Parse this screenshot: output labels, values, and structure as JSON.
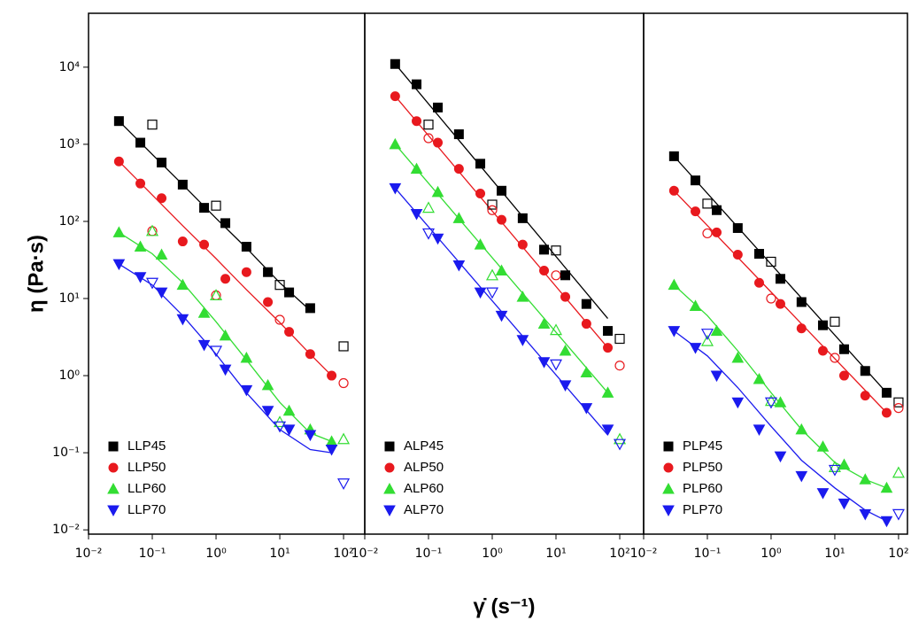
{
  "chart_data": [
    {
      "type": "scatter",
      "log_x": true,
      "log_y": true,
      "ylabel": "η (Pa·s)",
      "xlim": [
        0.01,
        215
      ],
      "ylim": [
        0.0088,
        50000
      ],
      "xticks": [
        {
          "value": 0.01,
          "label": "10⁻²"
        },
        {
          "value": 0.1,
          "label": "10⁻¹"
        },
        {
          "value": 1,
          "label": "10⁰"
        },
        {
          "value": 10,
          "label": "10¹"
        },
        {
          "value": 100,
          "label": "10²"
        }
      ],
      "yticks": [
        {
          "value": 0.01,
          "label": "10⁻²"
        },
        {
          "value": 0.1,
          "label": "10⁻¹"
        },
        {
          "value": 1,
          "label": "10⁰"
        },
        {
          "value": 10,
          "label": "10¹"
        },
        {
          "value": 100,
          "label": "10²"
        },
        {
          "value": 1000,
          "label": "10³"
        },
        {
          "value": 10000,
          "label": "10⁴"
        }
      ],
      "series": [
        {
          "name": "LLP45",
          "color": "#000000",
          "marker": "square",
          "x": [
            0.03,
            0.065,
            0.14,
            0.3,
            0.65,
            1.4,
            3,
            6.5,
            14,
            30
          ],
          "values": [
            2000,
            1050,
            580,
            300,
            150,
            95,
            47,
            22,
            12,
            7.5
          ]
        },
        {
          "name": "LLP50",
          "color": "#e8191e",
          "marker": "circle",
          "x": [
            0.03,
            0.065,
            0.14,
            0.3,
            0.65,
            1.4,
            3,
            6.5,
            14,
            30,
            65
          ],
          "values": [
            600,
            310,
            200,
            55,
            50,
            18,
            22,
            9,
            3.7,
            1.9,
            1.0
          ]
        },
        {
          "name": "LLP60",
          "color": "#33dd33",
          "marker": "triangle-up",
          "x": [
            0.03,
            0.065,
            0.14,
            0.3,
            0.65,
            1.4,
            3,
            6.5,
            14,
            30,
            65
          ],
          "values": [
            72,
            47,
            37,
            15,
            6.5,
            3.3,
            1.7,
            0.75,
            0.35,
            0.2,
            0.14
          ]
        },
        {
          "name": "LLP70",
          "color": "#1a1aee",
          "marker": "triangle-down",
          "x": [
            0.03,
            0.065,
            0.14,
            0.3,
            0.65,
            1.4,
            3,
            6.5,
            14,
            30,
            65
          ],
          "values": [
            28,
            19,
            12,
            5.4,
            2.5,
            1.2,
            0.65,
            0.35,
            0.2,
            0.17,
            0.11
          ]
        }
      ],
      "open_series": [
        {
          "color": "#000000",
          "marker": "square",
          "x": [
            0.1,
            1,
            10,
            100
          ],
          "values": [
            1800,
            160,
            15,
            2.4
          ]
        },
        {
          "color": "#e8191e",
          "marker": "circle",
          "x": [
            0.1,
            1,
            10,
            100
          ],
          "values": [
            75,
            11,
            5.3,
            0.8
          ]
        },
        {
          "color": "#33dd33",
          "marker": "triangle-up",
          "x": [
            0.1,
            1,
            10,
            100
          ],
          "values": [
            75,
            11,
            0.25,
            0.15
          ]
        },
        {
          "color": "#1a1aee",
          "marker": "triangle-down",
          "x": [
            0.1,
            1,
            10,
            100
          ],
          "values": [
            16,
            2.1,
            0.22,
            0.04
          ]
        }
      ],
      "fits": [
        {
          "color": "#000000",
          "x": [
            0.03,
            0.1,
            0.3,
            1,
            3,
            10,
            30
          ],
          "values": [
            2000,
            740,
            300,
            110,
            45,
            16,
            7
          ]
        },
        {
          "color": "#e8191e",
          "x": [
            0.03,
            0.1,
            0.3,
            1,
            3,
            10,
            30,
            65
          ],
          "values": [
            600,
            220,
            88,
            33,
            13,
            4.9,
            1.9,
            1.0
          ]
        },
        {
          "color": "#33dd33",
          "x": [
            0.03,
            0.1,
            0.3,
            1,
            3,
            10,
            30,
            65
          ],
          "values": [
            72,
            38,
            16,
            5,
            1.6,
            0.45,
            0.18,
            0.14
          ]
        },
        {
          "color": "#1a1aee",
          "x": [
            0.03,
            0.1,
            0.3,
            1,
            3,
            10,
            30,
            65
          ],
          "values": [
            28,
            15,
            6,
            1.9,
            0.6,
            0.2,
            0.11,
            0.1
          ]
        }
      ]
    },
    {
      "type": "scatter",
      "log_x": true,
      "log_y": true,
      "xlabel": "γ̇ (s⁻¹)",
      "xlim": [
        0.01,
        237
      ],
      "ylim": [
        0.0088,
        50000
      ],
      "xticks": [
        {
          "value": 0.01,
          "label": "10⁻²"
        },
        {
          "value": 0.1,
          "label": "10⁻¹"
        },
        {
          "value": 1,
          "label": "10⁰"
        },
        {
          "value": 10,
          "label": "10¹"
        },
        {
          "value": 100,
          "label": "10²"
        }
      ],
      "series": [
        {
          "name": "ALP45",
          "color": "#000000",
          "marker": "square",
          "x": [
            0.03,
            0.065,
            0.14,
            0.3,
            0.65,
            1.4,
            3,
            6.5,
            14,
            30,
            65
          ],
          "values": [
            11000,
            6000,
            3000,
            1350,
            560,
            250,
            110,
            43,
            20,
            8.5,
            3.8
          ]
        },
        {
          "name": "ALP50",
          "color": "#e8191e",
          "marker": "circle",
          "x": [
            0.03,
            0.065,
            0.14,
            0.3,
            0.65,
            1.4,
            3,
            6.5,
            14,
            30,
            65
          ],
          "values": [
            4200,
            2000,
            1050,
            480,
            230,
            105,
            50,
            23,
            10.5,
            4.7,
            2.3
          ]
        },
        {
          "name": "ALP60",
          "color": "#33dd33",
          "marker": "triangle-up",
          "x": [
            0.03,
            0.065,
            0.14,
            0.3,
            0.65,
            1.4,
            3,
            6.5,
            14,
            30,
            65
          ],
          "values": [
            1000,
            480,
            240,
            110,
            50,
            23,
            10.5,
            4.7,
            2.1,
            1.1,
            0.6
          ]
        },
        {
          "name": "ALP70",
          "color": "#1a1aee",
          "marker": "triangle-down",
          "x": [
            0.03,
            0.065,
            0.14,
            0.3,
            0.65,
            1.4,
            3,
            6.5,
            14,
            30,
            65
          ],
          "values": [
            270,
            125,
            60,
            27,
            12,
            6,
            2.9,
            1.5,
            0.75,
            0.38,
            0.2
          ]
        }
      ],
      "open_series": [
        {
          "color": "#000000",
          "marker": "square",
          "x": [
            0.1,
            1,
            10,
            100
          ],
          "values": [
            1800,
            165,
            42,
            3.0
          ]
        },
        {
          "color": "#e8191e",
          "marker": "circle",
          "x": [
            0.1,
            1,
            10,
            100
          ],
          "values": [
            1200,
            140,
            20,
            1.35
          ]
        },
        {
          "color": "#33dd33",
          "marker": "triangle-up",
          "x": [
            0.1,
            1,
            10,
            100
          ],
          "values": [
            150,
            20,
            3.9,
            0.15
          ]
        },
        {
          "color": "#1a1aee",
          "marker": "triangle-down",
          "x": [
            0.1,
            1,
            10,
            100
          ],
          "values": [
            70,
            12,
            1.4,
            0.13
          ]
        }
      ],
      "fits": [
        {
          "color": "#000000",
          "x": [
            0.03,
            65
          ],
          "values": [
            11000,
            5.5
          ]
        },
        {
          "color": "#e8191e",
          "x": [
            0.03,
            65
          ],
          "values": [
            4200,
            2.3
          ]
        },
        {
          "color": "#33dd33",
          "x": [
            0.03,
            65
          ],
          "values": [
            1000,
            0.6
          ]
        },
        {
          "color": "#1a1aee",
          "x": [
            0.03,
            65
          ],
          "values": [
            270,
            0.17
          ]
        }
      ]
    },
    {
      "type": "scatter",
      "log_x": true,
      "log_y": true,
      "xlim": [
        0.01,
        138
      ],
      "ylim": [
        0.0088,
        50000
      ],
      "xticks": [
        {
          "value": 0.01,
          "label": "10⁻²"
        },
        {
          "value": 0.1,
          "label": "10⁻¹"
        },
        {
          "value": 1,
          "label": "10⁰"
        },
        {
          "value": 10,
          "label": "10¹"
        },
        {
          "value": 100,
          "label": "10²"
        }
      ],
      "series": [
        {
          "name": "PLP45",
          "color": "#000000",
          "marker": "square",
          "x": [
            0.03,
            0.065,
            0.14,
            0.3,
            0.65,
            1.4,
            3,
            6.5,
            14,
            30,
            65
          ],
          "values": [
            700,
            340,
            140,
            82,
            38,
            18,
            9,
            4.5,
            2.2,
            1.15,
            0.6
          ]
        },
        {
          "name": "PLP50",
          "color": "#e8191e",
          "marker": "circle",
          "x": [
            0.03,
            0.065,
            0.14,
            0.3,
            0.65,
            1.4,
            3,
            6.5,
            14,
            30,
            65
          ],
          "values": [
            250,
            135,
            72,
            37,
            16,
            8.5,
            4.1,
            2.1,
            1.0,
            0.55,
            0.33
          ]
        },
        {
          "name": "PLP60",
          "color": "#33dd33",
          "marker": "triangle-up",
          "x": [
            0.03,
            0.065,
            0.14,
            0.3,
            0.65,
            1.4,
            3,
            6.5,
            14,
            30,
            65
          ],
          "values": [
            15,
            8,
            3.8,
            1.7,
            0.9,
            0.45,
            0.2,
            0.12,
            0.07,
            0.045,
            0.035
          ]
        },
        {
          "name": "PLP70",
          "color": "#1a1aee",
          "marker": "triangle-down",
          "x": [
            0.03,
            0.065,
            0.14,
            0.3,
            0.65,
            1.4,
            3,
            6.5,
            14,
            30,
            65
          ],
          "values": [
            3.8,
            2.3,
            1.0,
            0.45,
            0.2,
            0.09,
            0.05,
            0.03,
            0.022,
            0.016,
            0.013
          ]
        }
      ],
      "open_series": [
        {
          "color": "#000000",
          "marker": "square",
          "x": [
            0.1,
            1,
            10,
            100
          ],
          "values": [
            170,
            30,
            5,
            0.45
          ]
        },
        {
          "color": "#e8191e",
          "marker": "circle",
          "x": [
            0.1,
            1,
            10,
            100
          ],
          "values": [
            70,
            10,
            1.7,
            0.38
          ]
        },
        {
          "color": "#33dd33",
          "marker": "triangle-up",
          "x": [
            0.1,
            1,
            10,
            100
          ],
          "values": [
            2.8,
            0.47,
            0.065,
            0.055
          ]
        },
        {
          "color": "#1a1aee",
          "marker": "triangle-down",
          "x": [
            0.1,
            1,
            10,
            100
          ],
          "values": [
            3.5,
            0.45,
            0.06,
            0.016
          ]
        }
      ],
      "fits": [
        {
          "color": "#000000",
          "x": [
            0.03,
            65
          ],
          "values": [
            700,
            0.6
          ]
        },
        {
          "color": "#e8191e",
          "x": [
            0.03,
            65
          ],
          "values": [
            250,
            0.33
          ]
        },
        {
          "color": "#33dd33",
          "x": [
            0.03,
            0.1,
            0.3,
            1,
            3,
            10,
            30,
            65
          ],
          "values": [
            15,
            6,
            2.1,
            0.6,
            0.2,
            0.075,
            0.045,
            0.035
          ]
        },
        {
          "color": "#1a1aee",
          "x": [
            0.03,
            0.1,
            0.3,
            1,
            3,
            10,
            30,
            65
          ],
          "values": [
            3.8,
            1.8,
            0.7,
            0.22,
            0.08,
            0.035,
            0.018,
            0.013
          ]
        }
      ]
    }
  ]
}
